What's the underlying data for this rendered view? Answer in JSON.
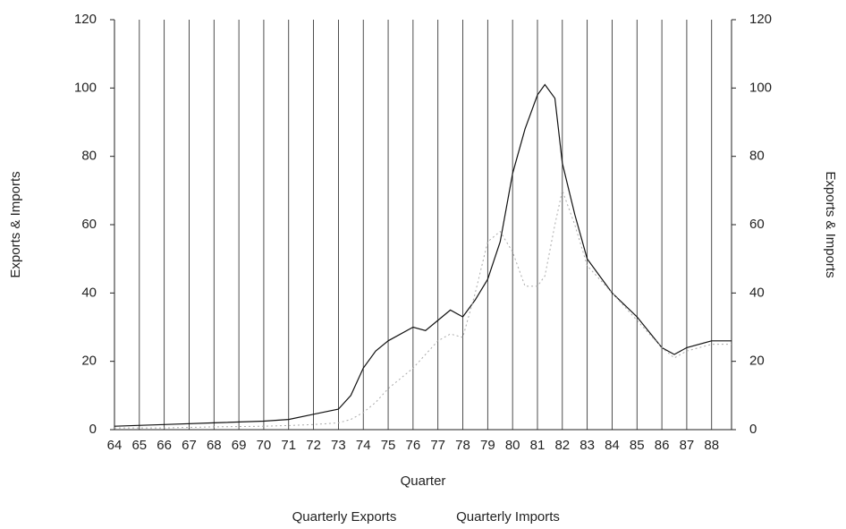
{
  "chart_data": {
    "type": "line",
    "y_label": "Exports & Imports",
    "y2_label": "Exports & Imports",
    "x_label": "Quarter",
    "x": [
      64,
      66,
      68,
      70,
      71,
      72,
      73,
      73.5,
      74,
      74.5,
      75,
      76,
      76.5,
      77,
      77.5,
      78,
      78.5,
      79,
      79.5,
      80,
      80.5,
      81,
      81.3,
      81.7,
      82,
      82.5,
      83,
      84,
      85,
      86,
      86.5,
      87,
      88,
      88.8
    ],
    "series": [
      {
        "name": "Quarterly Exports",
        "color": "#111111",
        "values": [
          1,
          1.5,
          2,
          2.5,
          3,
          4.5,
          6,
          10,
          18,
          23,
          26,
          30,
          29,
          32,
          35,
          33,
          38,
          44,
          55,
          75,
          88,
          98,
          101,
          97,
          78,
          63,
          50,
          40,
          33,
          24,
          22,
          24,
          26,
          26
        ]
      },
      {
        "name": "Quarterly Imports",
        "color": "#aaaaaa",
        "axis": "y2",
        "values": [
          0.5,
          0.5,
          0.8,
          1,
          1.2,
          1.5,
          2,
          3,
          5,
          8,
          12,
          18,
          22,
          26,
          28,
          27,
          40,
          55,
          58,
          52,
          42,
          42,
          45,
          60,
          70,
          60,
          48,
          40,
          32,
          24,
          21,
          23,
          25,
          25
        ]
      }
    ],
    "xlim": [
      64,
      88.8
    ],
    "xticks": [
      64,
      65,
      66,
      67,
      68,
      69,
      70,
      71,
      72,
      73,
      74,
      75,
      76,
      77,
      78,
      79,
      80,
      81,
      82,
      83,
      84,
      85,
      86,
      87,
      88
    ],
    "ylim": [
      0,
      120
    ],
    "yticks": [
      0,
      20,
      40,
      60,
      80,
      100,
      120
    ],
    "y2lim": [
      0,
      120
    ],
    "y2ticks": [
      0,
      20,
      40,
      60,
      80,
      100,
      120
    ],
    "grid": true
  }
}
